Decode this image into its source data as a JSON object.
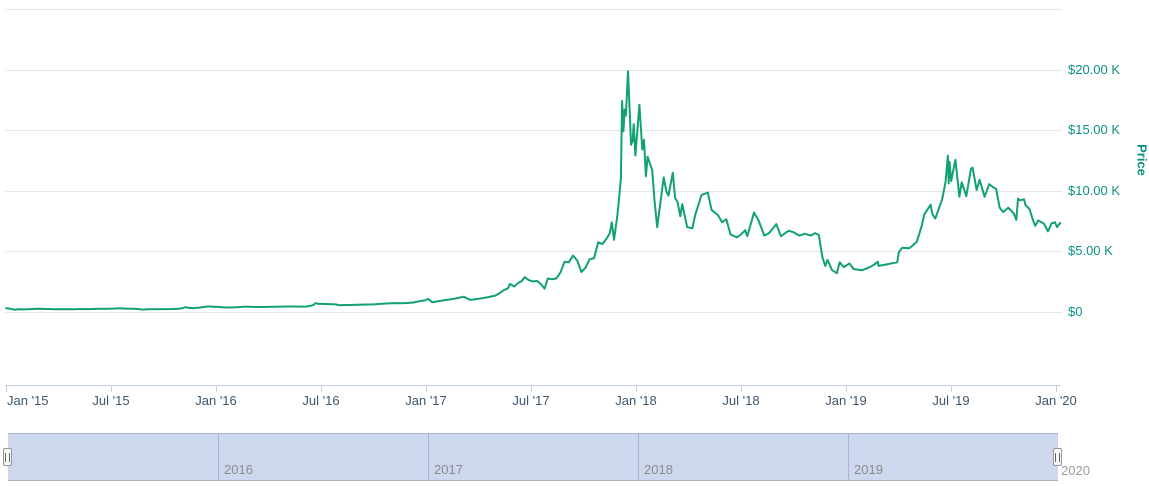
{
  "chart": {
    "y_axis_title": "Price",
    "y_ticks": [
      {
        "label": "$20.00 K",
        "value_k": 20
      },
      {
        "label": "$15.00 K",
        "value_k": 15
      },
      {
        "label": "$10.00 K",
        "value_k": 10
      },
      {
        "label": "$5.00 K",
        "value_k": 5
      },
      {
        "label": "$0",
        "value_k": 0
      }
    ],
    "y_gridlines_k": [
      25,
      20,
      15,
      10,
      5,
      0
    ],
    "x_ticks": [
      {
        "label": "Jan '15",
        "t": 0.0,
        "align": "left"
      },
      {
        "label": "Jul '15",
        "t": 0.5
      },
      {
        "label": "Jan '16",
        "t": 1.0
      },
      {
        "label": "Jul '16",
        "t": 1.5
      },
      {
        "label": "Jan '17",
        "t": 2.0
      },
      {
        "label": "Jul '17",
        "t": 2.5
      },
      {
        "label": "Jan '18",
        "t": 3.0
      },
      {
        "label": "Jul '18",
        "t": 3.5
      },
      {
        "label": "Jan '19",
        "t": 4.0
      },
      {
        "label": "Jul '19",
        "t": 4.5
      },
      {
        "label": "Jan '20",
        "t": 5.0
      }
    ],
    "colors": {
      "series_line": "#12A170",
      "y_axis_text": "#0B9183",
      "x_axis_text": "#3D566E",
      "gridline": "#E6E6E6",
      "axis_line": "#C0D0E0",
      "navigator_fill": "#CDD7ED",
      "navigator_outline": "#B2B1B6"
    }
  },
  "navigator": {
    "years": [
      {
        "label": "2016",
        "t": 1
      },
      {
        "label": "2017",
        "t": 2
      },
      {
        "label": "2018",
        "t": 3
      },
      {
        "label": "2019",
        "t": 4
      }
    ],
    "after_label": "2020"
  },
  "chart_data": {
    "type": "line",
    "title": "",
    "xlabel": "",
    "ylabel": "Price",
    "grid": "horizontal",
    "legend": "none",
    "x_axis": {
      "range": [
        "Jan 2015",
        "Jan 2020"
      ],
      "tick_labels": [
        "Jan '15",
        "Jul '15",
        "Jan '16",
        "Jul '16",
        "Jan '17",
        "Jul '17",
        "Jan '18",
        "Jul '18",
        "Jan '19",
        "Jul '19",
        "Jan '20"
      ]
    },
    "y_axis": {
      "range_usd": [
        0,
        25000
      ],
      "tick_labels": [
        "$0",
        "$5.00 K",
        "$10.00 K",
        "$15.00 K",
        "$20.00 K"
      ],
      "labels_side": "right"
    },
    "series": [
      {
        "name": "Price",
        "color": "#12A170",
        "x_unit": "years since 2015-01-01",
        "y_unit": "USD thousands",
        "points": [
          [
            0.0,
            0.315
          ],
          [
            0.015,
            0.29
          ],
          [
            0.04,
            0.19
          ],
          [
            0.06,
            0.23
          ],
          [
            0.09,
            0.215
          ],
          [
            0.12,
            0.245
          ],
          [
            0.16,
            0.27
          ],
          [
            0.2,
            0.25
          ],
          [
            0.24,
            0.235
          ],
          [
            0.28,
            0.24
          ],
          [
            0.32,
            0.23
          ],
          [
            0.36,
            0.25
          ],
          [
            0.4,
            0.24
          ],
          [
            0.44,
            0.26
          ],
          [
            0.48,
            0.27
          ],
          [
            0.52,
            0.29
          ],
          [
            0.545,
            0.31
          ],
          [
            0.57,
            0.28
          ],
          [
            0.61,
            0.27
          ],
          [
            0.64,
            0.225
          ],
          [
            0.655,
            0.2
          ],
          [
            0.67,
            0.23
          ],
          [
            0.71,
            0.235
          ],
          [
            0.75,
            0.24
          ],
          [
            0.79,
            0.245
          ],
          [
            0.82,
            0.27
          ],
          [
            0.845,
            0.33
          ],
          [
            0.855,
            0.4
          ],
          [
            0.868,
            0.335
          ],
          [
            0.89,
            0.325
          ],
          [
            0.92,
            0.36
          ],
          [
            0.95,
            0.43
          ],
          [
            0.97,
            0.46
          ],
          [
            0.985,
            0.42
          ],
          [
            1.0,
            0.43
          ],
          [
            1.03,
            0.39
          ],
          [
            1.05,
            0.375
          ],
          [
            1.07,
            0.37
          ],
          [
            1.1,
            0.39
          ],
          [
            1.13,
            0.44
          ],
          [
            1.16,
            0.435
          ],
          [
            1.19,
            0.41
          ],
          [
            1.22,
            0.415
          ],
          [
            1.25,
            0.42
          ],
          [
            1.28,
            0.43
          ],
          [
            1.31,
            0.445
          ],
          [
            1.34,
            0.455
          ],
          [
            1.37,
            0.45
          ],
          [
            1.4,
            0.445
          ],
          [
            1.43,
            0.455
          ],
          [
            1.455,
            0.53
          ],
          [
            1.465,
            0.59
          ],
          [
            1.475,
            0.74
          ],
          [
            1.485,
            0.67
          ],
          [
            1.5,
            0.67
          ],
          [
            1.52,
            0.66
          ],
          [
            1.54,
            0.655
          ],
          [
            1.57,
            0.625
          ],
          [
            1.59,
            0.55
          ],
          [
            1.61,
            0.575
          ],
          [
            1.64,
            0.58
          ],
          [
            1.67,
            0.605
          ],
          [
            1.7,
            0.61
          ],
          [
            1.73,
            0.615
          ],
          [
            1.76,
            0.635
          ],
          [
            1.79,
            0.685
          ],
          [
            1.82,
            0.71
          ],
          [
            1.85,
            0.735
          ],
          [
            1.88,
            0.72
          ],
          [
            1.91,
            0.745
          ],
          [
            1.94,
            0.78
          ],
          [
            1.97,
            0.9
          ],
          [
            1.995,
            0.96
          ],
          [
            2.01,
            1.08
          ],
          [
            2.03,
            0.8
          ],
          [
            2.06,
            0.9
          ],
          [
            2.09,
            0.985
          ],
          [
            2.12,
            1.05
          ],
          [
            2.16,
            1.19
          ],
          [
            2.18,
            1.26
          ],
          [
            2.21,
            1.0
          ],
          [
            2.23,
            1.04
          ],
          [
            2.25,
            1.09
          ],
          [
            2.29,
            1.2
          ],
          [
            2.33,
            1.35
          ],
          [
            2.35,
            1.55
          ],
          [
            2.37,
            1.8
          ],
          [
            2.39,
            1.95
          ],
          [
            2.4,
            2.32
          ],
          [
            2.42,
            2.1
          ],
          [
            2.44,
            2.4
          ],
          [
            2.455,
            2.55
          ],
          [
            2.47,
            2.88
          ],
          [
            2.49,
            2.62
          ],
          [
            2.51,
            2.52
          ],
          [
            2.53,
            2.56
          ],
          [
            2.55,
            2.25
          ],
          [
            2.565,
            1.93
          ],
          [
            2.58,
            2.76
          ],
          [
            2.6,
            2.7
          ],
          [
            2.62,
            2.76
          ],
          [
            2.64,
            3.25
          ],
          [
            2.66,
            4.15
          ],
          [
            2.68,
            4.1
          ],
          [
            2.7,
            4.65
          ],
          [
            2.72,
            4.25
          ],
          [
            2.74,
            3.3
          ],
          [
            2.76,
            3.66
          ],
          [
            2.78,
            4.36
          ],
          [
            2.8,
            4.42
          ],
          [
            2.82,
            5.75
          ],
          [
            2.84,
            5.6
          ],
          [
            2.86,
            6.05
          ],
          [
            2.875,
            6.5
          ],
          [
            2.885,
            7.4
          ],
          [
            2.895,
            5.95
          ],
          [
            2.912,
            8.05
          ],
          [
            2.92,
            9.5
          ],
          [
            2.928,
            11.0
          ],
          [
            2.934,
            17.4
          ],
          [
            2.94,
            14.9
          ],
          [
            2.946,
            16.7
          ],
          [
            2.952,
            16.2
          ],
          [
            2.962,
            19.85
          ],
          [
            2.97,
            16.6
          ],
          [
            2.976,
            13.8
          ],
          [
            2.984,
            14.1
          ],
          [
            2.989,
            15.5
          ],
          [
            2.997,
            12.9
          ],
          [
            3.016,
            17.1
          ],
          [
            3.03,
            13.4
          ],
          [
            3.038,
            14.2
          ],
          [
            3.047,
            11.2
          ],
          [
            3.055,
            12.8
          ],
          [
            3.077,
            11.7
          ],
          [
            3.088,
            9.2
          ],
          [
            3.101,
            7.0
          ],
          [
            3.132,
            11.1
          ],
          [
            3.145,
            9.9
          ],
          [
            3.155,
            9.6
          ],
          [
            3.175,
            11.5
          ],
          [
            3.186,
            9.4
          ],
          [
            3.197,
            9.1
          ],
          [
            3.211,
            7.9
          ],
          [
            3.22,
            8.9
          ],
          [
            3.244,
            7.0
          ],
          [
            3.268,
            6.9
          ],
          [
            3.282,
            8.0
          ],
          [
            3.312,
            9.65
          ],
          [
            3.342,
            9.85
          ],
          [
            3.36,
            8.4
          ],
          [
            3.39,
            8.0
          ],
          [
            3.41,
            7.4
          ],
          [
            3.43,
            7.65
          ],
          [
            3.45,
            6.4
          ],
          [
            3.48,
            6.15
          ],
          [
            3.5,
            6.4
          ],
          [
            3.52,
            6.75
          ],
          [
            3.53,
            6.25
          ],
          [
            3.562,
            8.2
          ],
          [
            3.584,
            7.55
          ],
          [
            3.611,
            6.3
          ],
          [
            3.633,
            6.5
          ],
          [
            3.668,
            7.25
          ],
          [
            3.68,
            6.7
          ],
          [
            3.69,
            6.25
          ],
          [
            3.726,
            6.7
          ],
          [
            3.748,
            6.6
          ],
          [
            3.778,
            6.3
          ],
          [
            3.803,
            6.45
          ],
          [
            3.833,
            6.3
          ],
          [
            3.852,
            6.5
          ],
          [
            3.871,
            6.35
          ],
          [
            3.877,
            5.6
          ],
          [
            3.888,
            4.5
          ],
          [
            3.901,
            3.8
          ],
          [
            3.912,
            4.3
          ],
          [
            3.934,
            3.45
          ],
          [
            3.956,
            3.2
          ],
          [
            3.97,
            4.1
          ],
          [
            3.989,
            3.7
          ],
          [
            4.016,
            4.0
          ],
          [
            4.036,
            3.55
          ],
          [
            4.077,
            3.45
          ],
          [
            4.107,
            3.65
          ],
          [
            4.134,
            3.9
          ],
          [
            4.151,
            4.15
          ],
          [
            4.155,
            3.8
          ],
          [
            4.2,
            3.95
          ],
          [
            4.244,
            4.1
          ],
          [
            4.252,
            4.95
          ],
          [
            4.268,
            5.3
          ],
          [
            4.3,
            5.25
          ],
          [
            4.315,
            5.45
          ],
          [
            4.337,
            5.8
          ],
          [
            4.359,
            7.0
          ],
          [
            4.373,
            8.05
          ],
          [
            4.403,
            8.85
          ],
          [
            4.411,
            8.1
          ],
          [
            4.425,
            7.7
          ],
          [
            4.458,
            9.3
          ],
          [
            4.474,
            10.7
          ],
          [
            4.485,
            12.9
          ],
          [
            4.489,
            10.6
          ],
          [
            4.493,
            12.4
          ],
          [
            4.501,
            10.8
          ],
          [
            4.51,
            11.6
          ],
          [
            4.521,
            12.55
          ],
          [
            4.54,
            9.5
          ],
          [
            4.551,
            10.7
          ],
          [
            4.573,
            9.55
          ],
          [
            4.595,
            11.8
          ],
          [
            4.603,
            11.9
          ],
          [
            4.622,
            10.05
          ],
          [
            4.636,
            10.9
          ],
          [
            4.66,
            9.5
          ],
          [
            4.682,
            10.55
          ],
          [
            4.7,
            10.3
          ],
          [
            4.715,
            10.15
          ],
          [
            4.732,
            8.6
          ],
          [
            4.748,
            8.25
          ],
          [
            4.773,
            8.6
          ],
          [
            4.8,
            8.1
          ],
          [
            4.811,
            7.6
          ],
          [
            4.819,
            9.35
          ],
          [
            4.83,
            9.2
          ],
          [
            4.847,
            9.3
          ],
          [
            4.855,
            8.8
          ],
          [
            4.874,
            8.5
          ],
          [
            4.89,
            7.6
          ],
          [
            4.901,
            7.1
          ],
          [
            4.915,
            7.55
          ],
          [
            4.942,
            7.3
          ],
          [
            4.962,
            6.65
          ],
          [
            4.978,
            7.3
          ],
          [
            4.995,
            7.4
          ],
          [
            5.005,
            7.0
          ],
          [
            5.02,
            7.35
          ]
        ]
      }
    ]
  }
}
